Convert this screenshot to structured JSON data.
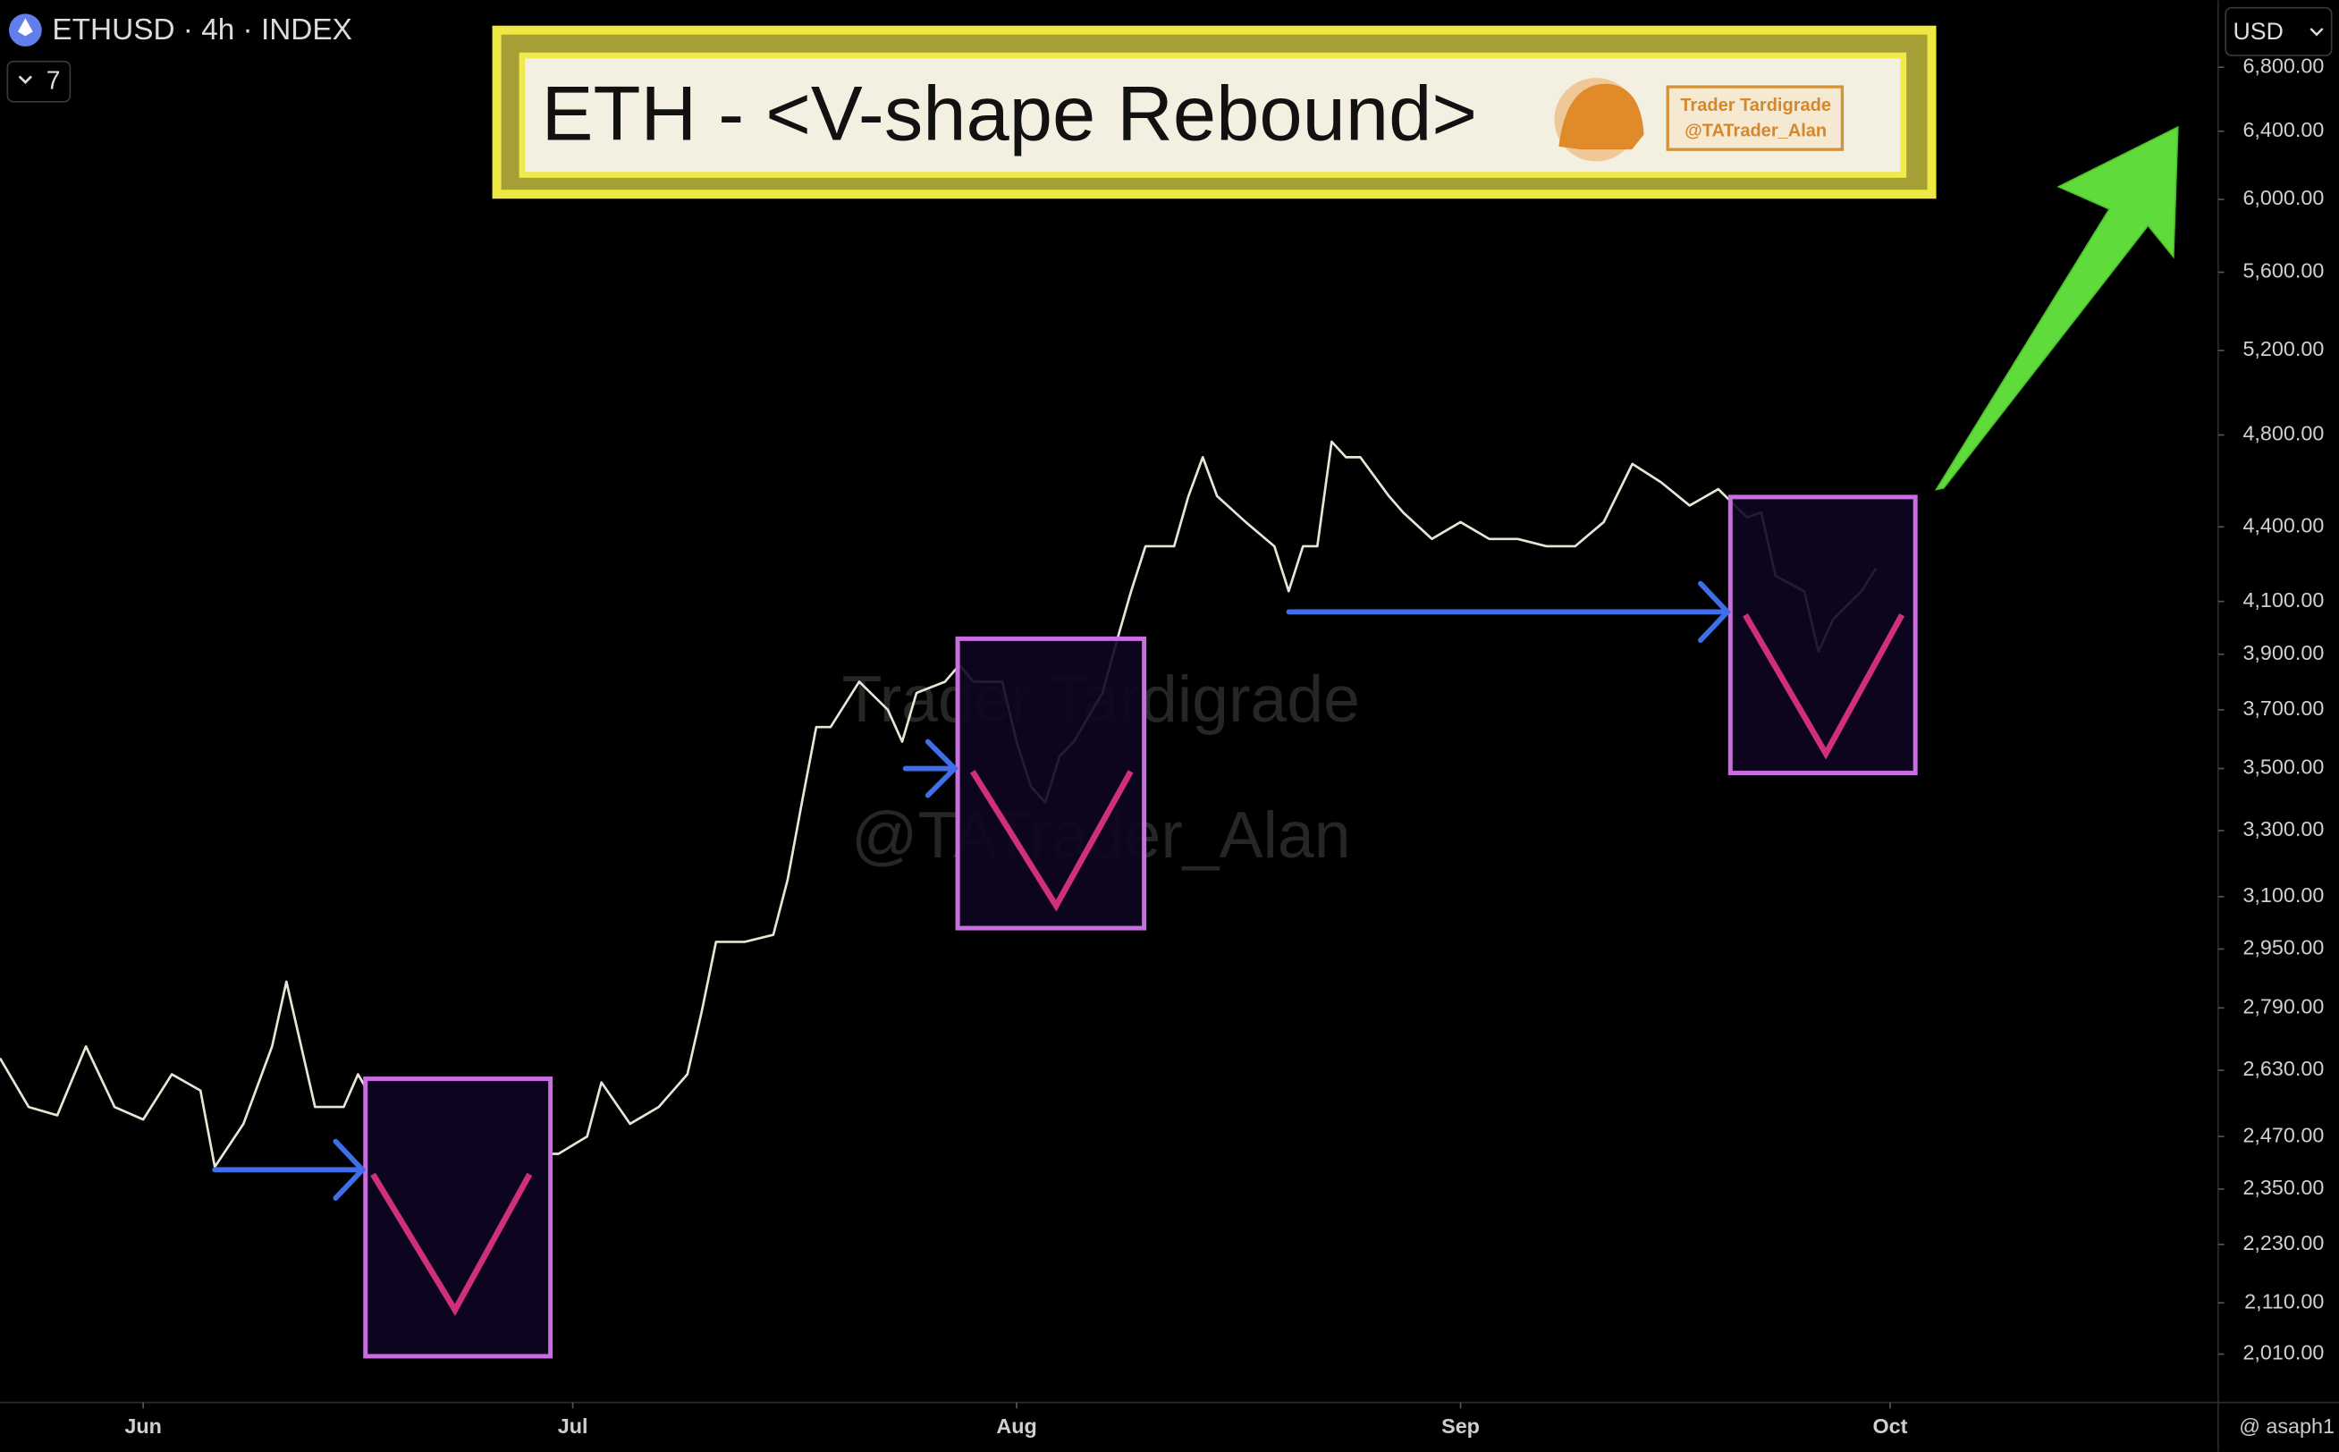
{
  "chart_data": {
    "type": "line",
    "title": "ETH - <V-shape Rebound>",
    "symbol": "ETHUSD · 4h · INDEX",
    "indicator_count": 7,
    "currency": "USD",
    "badge": [
      "Trader Tardigrade",
      "@TATrader_Alan"
    ],
    "watermark": [
      "Trader Tardigrade",
      "@TATrader_Alan"
    ],
    "credit": "@ asaph1",
    "color": "#e9e5d6",
    "log_scale": true,
    "grid": false,
    "x": [
      0,
      2,
      4,
      6,
      8,
      10,
      12,
      14,
      15,
      17,
      19,
      20,
      22,
      24,
      25,
      27,
      29,
      30,
      31,
      32,
      33,
      35,
      37,
      39,
      41,
      42,
      44,
      46,
      48,
      49,
      50,
      52,
      54,
      55,
      56,
      57,
      58,
      60,
      62,
      63,
      64,
      66,
      67,
      68,
      70,
      71,
      72,
      73,
      74,
      75,
      77,
      78,
      79,
      80,
      82,
      83,
      84,
      85,
      87,
      89,
      90,
      91,
      92,
      93,
      94,
      95,
      97,
      98,
      100,
      102,
      104,
      106,
      108,
      110,
      112,
      114,
      116,
      118,
      120,
      122,
      123,
      124,
      126,
      127,
      128,
      130,
      131
    ],
    "values": [
      2660,
      2540,
      2520,
      2690,
      2540,
      2510,
      2620,
      2580,
      2400,
      2500,
      2690,
      2860,
      2540,
      2540,
      2620,
      2500,
      2470,
      2430,
      2210,
      2170,
      2400,
      2430,
      2430,
      2430,
      2470,
      2600,
      2500,
      2540,
      2620,
      2780,
      2970,
      2970,
      2990,
      3150,
      3390,
      3640,
      3640,
      3800,
      3700,
      3590,
      3760,
      3800,
      3860,
      3800,
      3800,
      3590,
      3440,
      3390,
      3540,
      3590,
      3760,
      3950,
      4140,
      4320,
      4320,
      4530,
      4700,
      4530,
      4420,
      4320,
      4140,
      4320,
      4320,
      4770,
      4700,
      4700,
      4530,
      4460,
      4350,
      4420,
      4350,
      4350,
      4320,
      4320,
      4420,
      4670,
      4590,
      4490,
      4560,
      4440,
      4460,
      4200,
      4140,
      3910,
      4030,
      4140,
      4230
    ],
    "xlim": [
      0,
      154.7
    ],
    "xticks": [
      {
        "value": 10,
        "label": "Jun"
      },
      {
        "value": 40,
        "label": "Jul"
      },
      {
        "value": 71,
        "label": "Aug"
      },
      {
        "value": 102,
        "label": "Sep"
      },
      {
        "value": 132,
        "label": "Oct"
      }
    ],
    "ylim": [
      1920,
      7245
    ],
    "yticks": [
      {
        "value": 2010,
        "label": "2,010.00"
      },
      {
        "value": 2110,
        "label": "2,110.00"
      },
      {
        "value": 2230,
        "label": "2,230.00"
      },
      {
        "value": 2350,
        "label": "2,350.00"
      },
      {
        "value": 2470,
        "label": "2,470.00"
      },
      {
        "value": 2630,
        "label": "2,630.00"
      },
      {
        "value": 2790,
        "label": "2,790.00"
      },
      {
        "value": 2950,
        "label": "2,950.00"
      },
      {
        "value": 3100,
        "label": "3,100.00"
      },
      {
        "value": 3300,
        "label": "3,300.00"
      },
      {
        "value": 3500,
        "label": "3,500.00"
      },
      {
        "value": 3700,
        "label": "3,700.00"
      },
      {
        "value": 3900,
        "label": "3,900.00"
      },
      {
        "value": 4100,
        "label": "4,100.00"
      },
      {
        "value": 4400,
        "label": "4,400.00"
      },
      {
        "value": 4800,
        "label": "4,800.00"
      },
      {
        "value": 5200,
        "label": "5,200.00"
      },
      {
        "value": 5600,
        "label": "5,600.00"
      },
      {
        "value": 6000,
        "label": "6,000.00"
      },
      {
        "value": 6400,
        "label": "6,400.00"
      },
      {
        "value": 6800,
        "label": "6,800.00"
      }
    ]
  }
}
